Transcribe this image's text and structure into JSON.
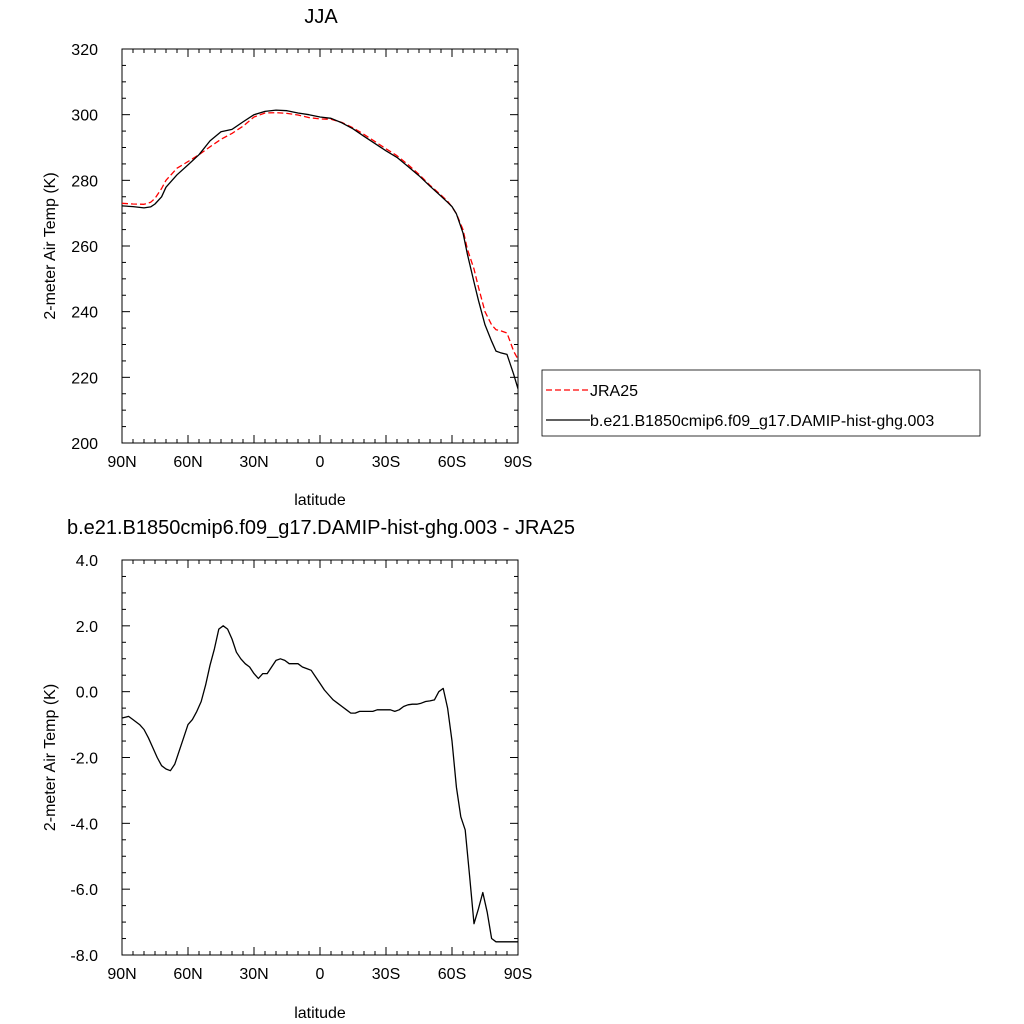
{
  "chart_data": [
    {
      "type": "line",
      "title": "JJA",
      "xlabel": "latitude",
      "ylabel": "2-meter Air Temp (K)",
      "xlim": [
        90,
        -90
      ],
      "ylim": [
        200,
        320
      ],
      "xticks": [
        90,
        60,
        30,
        0,
        -30,
        -60,
        -90
      ],
      "xtick_labels": [
        "90N",
        "60N",
        "30N",
        "0",
        "30S",
        "60S",
        "90S"
      ],
      "yticks": [
        200,
        220,
        240,
        260,
        280,
        300,
        320
      ],
      "ytick_labels": [
        "200",
        "220",
        "240",
        "260",
        "280",
        "300",
        "320"
      ],
      "legend_position": "right",
      "series": [
        {
          "name": "JRA25",
          "color": "#ff0000",
          "style": "dashed",
          "x": [
            90,
            85,
            80,
            77,
            75,
            72,
            70,
            65,
            60,
            55,
            50,
            45,
            40,
            35,
            30,
            25,
            20,
            15,
            10,
            5,
            0,
            -5,
            -10,
            -15,
            -20,
            -25,
            -30,
            -35,
            -40,
            -45,
            -50,
            -55,
            -58,
            -60,
            -62,
            -65,
            -67,
            -70,
            -72,
            -75,
            -78,
            -80,
            -82,
            -85,
            -88,
            -90
          ],
          "y": [
            273,
            272.8,
            272.7,
            273.3,
            274.5,
            277.5,
            280.0,
            283.7,
            285.7,
            287.8,
            290.2,
            292.5,
            294.3,
            296.5,
            299.3,
            300.5,
            300.6,
            300.4,
            299.9,
            299.1,
            298.7,
            298.6,
            297.6,
            296.0,
            294.0,
            291.8,
            289.6,
            287.5,
            284.8,
            281.8,
            278.5,
            275.5,
            273.6,
            271.9,
            269.8,
            265.0,
            259.0,
            253.0,
            247.5,
            240.0,
            236.0,
            234.5,
            234.2,
            233.5,
            228.0,
            225.5
          ]
        },
        {
          "name": "b.e21.B1850cmip6.f09_g17.DAMIP-hist-ghg.003",
          "color": "#000000",
          "style": "solid",
          "x": [
            90,
            85,
            80,
            77,
            75,
            72,
            70,
            65,
            60,
            55,
            50,
            45,
            40,
            35,
            30,
            25,
            20,
            15,
            10,
            5,
            0,
            -5,
            -10,
            -15,
            -20,
            -25,
            -30,
            -35,
            -40,
            -45,
            -50,
            -55,
            -58,
            -60,
            -62,
            -65,
            -67,
            -70,
            -72,
            -75,
            -78,
            -80,
            -82,
            -85,
            -88,
            -90
          ],
          "y": [
            272.2,
            272.0,
            271.6,
            271.9,
            272.8,
            275.0,
            277.9,
            281.7,
            284.7,
            287.8,
            292.0,
            294.8,
            295.5,
            297.8,
            300.0,
            301.0,
            301.4,
            301.2,
            300.5,
            300.0,
            299.3,
            298.9,
            297.5,
            295.7,
            293.4,
            291.2,
            289.0,
            287.0,
            284.2,
            281.4,
            278.2,
            275.2,
            273.3,
            272.0,
            269.8,
            264.0,
            257.5,
            249.0,
            243.5,
            236.0,
            231.0,
            228.0,
            227.5,
            227.0,
            221.0,
            216.5
          ]
        }
      ]
    },
    {
      "type": "line",
      "title": "b.e21.B1850cmip6.f09_g17.DAMIP-hist-ghg.003 - JRA25",
      "xlabel": "latitude",
      "ylabel": "2-meter Air Temp (K)",
      "xlim": [
        90,
        -90
      ],
      "ylim": [
        -8,
        4
      ],
      "xticks": [
        90,
        60,
        30,
        0,
        -30,
        -60,
        -90
      ],
      "xtick_labels": [
        "90N",
        "60N",
        "30N",
        "0",
        "30S",
        "60S",
        "90S"
      ],
      "yticks": [
        -8,
        -6,
        -4,
        -2,
        0,
        2,
        4
      ],
      "ytick_labels": [
        "-8.0",
        "-6.0",
        "-4.0",
        "-2.0",
        "0.0",
        "2.0",
        "4.0"
      ],
      "series": [
        {
          "color": "#000000",
          "style": "solid",
          "x": [
            90,
            87,
            85,
            82,
            80,
            78,
            76,
            74,
            72,
            70,
            68,
            66,
            64,
            62,
            60,
            58,
            56,
            54,
            52,
            50,
            48,
            46,
            44,
            42,
            40,
            38,
            36,
            34,
            32,
            30,
            28,
            26,
            24,
            22,
            20,
            18,
            16,
            14,
            12,
            10,
            8,
            6,
            4,
            2,
            0,
            -2,
            -4,
            -6,
            -8,
            -10,
            -12,
            -14,
            -16,
            -18,
            -20,
            -22,
            -24,
            -26,
            -28,
            -30,
            -32,
            -34,
            -36,
            -38,
            -40,
            -42,
            -44,
            -46,
            -48,
            -50,
            -52,
            -54,
            -56,
            -58,
            -60,
            -62,
            -64,
            -66,
            -68,
            -70,
            -72,
            -74,
            -76,
            -78,
            -80,
            -82,
            -84,
            -86,
            -88,
            -90
          ],
          "y": [
            -0.8,
            -0.75,
            -0.85,
            -1.0,
            -1.15,
            -1.4,
            -1.7,
            -2.0,
            -2.25,
            -2.35,
            -2.4,
            -2.2,
            -1.8,
            -1.4,
            -1.0,
            -0.85,
            -0.6,
            -0.3,
            0.2,
            0.8,
            1.3,
            1.9,
            2.0,
            1.9,
            1.6,
            1.2,
            1.0,
            0.85,
            0.75,
            0.55,
            0.4,
            0.55,
            0.55,
            0.75,
            0.95,
            1.0,
            0.95,
            0.85,
            0.85,
            0.85,
            0.75,
            0.7,
            0.65,
            0.45,
            0.25,
            0.05,
            -0.1,
            -0.25,
            -0.35,
            -0.45,
            -0.55,
            -0.65,
            -0.65,
            -0.6,
            -0.6,
            -0.6,
            -0.6,
            -0.55,
            -0.55,
            -0.55,
            -0.55,
            -0.6,
            -0.55,
            -0.45,
            -0.4,
            -0.38,
            -0.38,
            -0.35,
            -0.3,
            -0.28,
            -0.25,
            0.0,
            0.1,
            -0.5,
            -1.5,
            -2.9,
            -3.8,
            -4.2,
            -5.6,
            -7.05,
            -6.6,
            -6.1,
            -6.7,
            -7.5,
            -7.6,
            -7.6,
            -7.6,
            -7.6,
            -7.6,
            -7.6
          ]
        }
      ]
    }
  ]
}
